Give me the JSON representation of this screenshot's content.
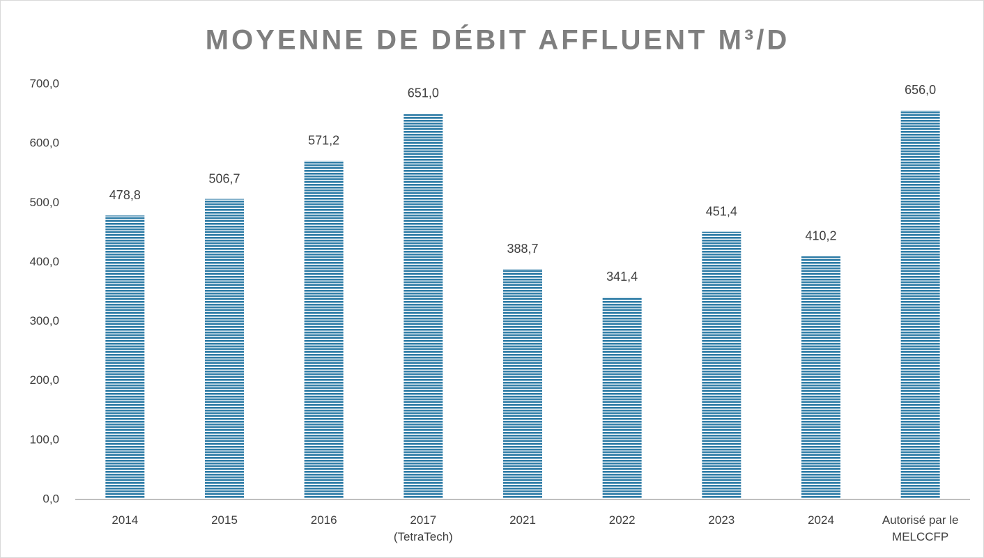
{
  "chart_data": {
    "type": "bar",
    "title": "MOYENNE DE DÉBIT AFFLUENT M³/D",
    "categories": [
      "2014",
      "2015",
      "2016",
      "2017 (TetraTech)",
      "2021",
      "2022",
      "2023",
      "2024",
      "Autorisé par le MELCCFP"
    ],
    "values": [
      478.8,
      506.7,
      571.2,
      651.0,
      388.7,
      341.4,
      451.4,
      410.2,
      656.0
    ],
    "value_labels": [
      "478,8",
      "506,7",
      "571,2",
      "651,0",
      "388,7",
      "341,4",
      "451,4",
      "410,2",
      "656,0"
    ],
    "color": "#2e7ca6",
    "ylim": [
      0,
      700
    ],
    "yticks": [
      {
        "value": 0,
        "label": "0,0"
      },
      {
        "value": 100,
        "label": "100,0"
      },
      {
        "value": 200,
        "label": "200,0"
      },
      {
        "value": 300,
        "label": "300,0"
      },
      {
        "value": 400,
        "label": "400,0"
      },
      {
        "value": 500,
        "label": "500,0"
      },
      {
        "value": 600,
        "label": "600,0"
      },
      {
        "value": 700,
        "label": "700,0"
      }
    ],
    "grid": false
  }
}
